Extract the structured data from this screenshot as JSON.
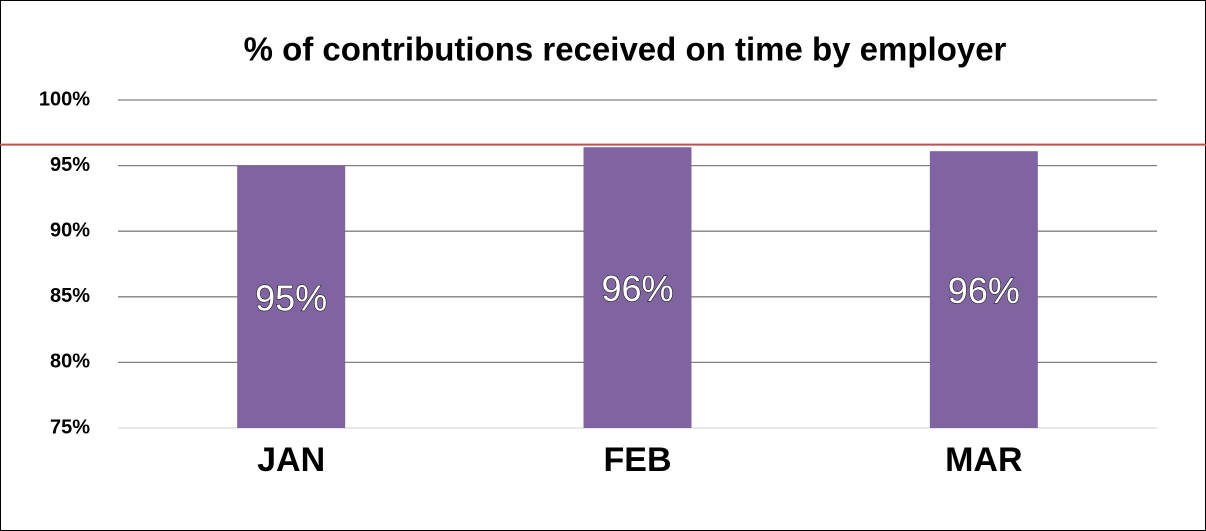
{
  "chart_data": {
    "type": "bar",
    "title": "% of contributions received on time by employer",
    "categories": [
      "JAN",
      "FEB",
      "MAR"
    ],
    "values": [
      95.0,
      96.4,
      96.1
    ],
    "value_labels": [
      "95%",
      "96%",
      "96%"
    ],
    "color": "#8064a2",
    "ylim": [
      75,
      100
    ],
    "yticks": [
      {
        "value": 75,
        "label": "75%"
      },
      {
        "value": 80,
        "label": "80%"
      },
      {
        "value": 85,
        "label": "85%"
      },
      {
        "value": 90,
        "label": "90%"
      },
      {
        "value": 95,
        "label": "95%"
      },
      {
        "value": 100,
        "label": "100%"
      }
    ],
    "grid": true,
    "reference_line": {
      "value": 96.6,
      "color": "#c0504d"
    }
  }
}
